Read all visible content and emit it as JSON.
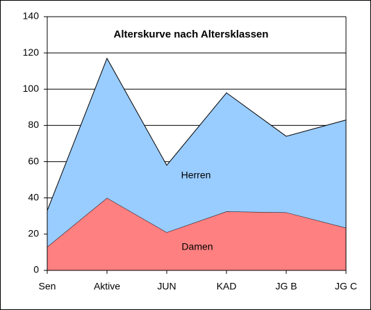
{
  "chart_data": {
    "type": "stacked-area",
    "title": "Alterskurve nach Altersklassen",
    "categories": [
      "Sen",
      "Aktive",
      "JUN",
      "KAD",
      "JG B",
      "JG C"
    ],
    "series": [
      {
        "name": "Damen",
        "color": "#ff8080",
        "values": [
          13,
          40,
          21,
          32.5,
          32,
          23.5
        ]
      },
      {
        "name": "Herren",
        "color": "#99ccff",
        "values": [
          20,
          77,
          37,
          65.5,
          42,
          59.5
        ]
      }
    ],
    "ylim": [
      0,
      140
    ],
    "yticks": [
      0,
      20,
      40,
      60,
      80,
      100,
      120,
      140
    ],
    "grid": true
  }
}
